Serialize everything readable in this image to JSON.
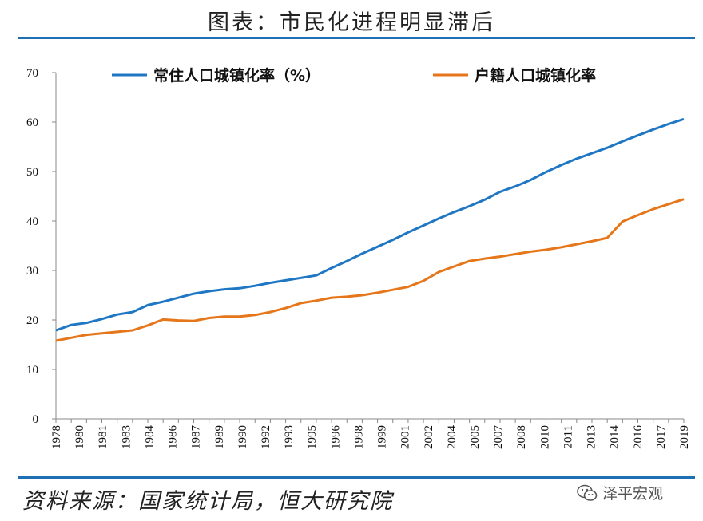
{
  "title": "图表：市民化进程明显滞后",
  "source": "资料来源：国家统计局，恒大研究院",
  "watermark": "泽平宏观",
  "watermark_icon": "wechat-icon",
  "colors": {
    "series1": "#1f77c4",
    "series2": "#e6761a",
    "rule": "#1f6fb5"
  },
  "chart_data": {
    "type": "line",
    "ylim": [
      0,
      70
    ],
    "yticks": [
      0,
      10,
      20,
      30,
      40,
      50,
      60,
      70
    ],
    "grid": false,
    "legend_placement": "top",
    "xtick_labels": [
      "1978",
      "1980",
      "1981",
      "1983",
      "1984",
      "1986",
      "1987",
      "1989",
      "1990",
      "1992",
      "1993",
      "1995",
      "1996",
      "1998",
      "1999",
      "2001",
      "2002",
      "2004",
      "2005",
      "2007",
      "2008",
      "2010",
      "2011",
      "2013",
      "2014",
      "2016",
      "2017",
      "2019"
    ],
    "x": [
      1978,
      1979,
      1980,
      1981,
      1982,
      1983,
      1984,
      1985,
      1986,
      1987,
      1988,
      1989,
      1990,
      1991,
      1992,
      1993,
      1994,
      1995,
      1996,
      1997,
      1998,
      1999,
      2000,
      2001,
      2002,
      2003,
      2004,
      2005,
      2006,
      2007,
      2008,
      2009,
      2010,
      2011,
      2012,
      2013,
      2014,
      2015,
      2016,
      2017,
      2018,
      2019
    ],
    "series": [
      {
        "name": "常住人口城镇化率（%）",
        "color": "#1f77c4",
        "values": [
          17.9,
          19.0,
          19.4,
          20.2,
          21.1,
          21.6,
          23.0,
          23.7,
          24.5,
          25.3,
          25.8,
          26.2,
          26.4,
          26.9,
          27.5,
          28.0,
          28.5,
          29.0,
          30.5,
          31.9,
          33.4,
          34.8,
          36.2,
          37.7,
          39.1,
          40.5,
          41.8,
          43.0,
          44.3,
          45.9,
          47.0,
          48.3,
          49.9,
          51.3,
          52.6,
          53.7,
          54.8,
          56.1,
          57.3,
          58.5,
          59.6,
          60.6
        ]
      },
      {
        "name": "户籍人口城镇化率",
        "color": "#e6761a",
        "values": [
          15.8,
          16.4,
          17.0,
          17.3,
          17.6,
          17.9,
          18.9,
          20.1,
          19.9,
          19.8,
          20.4,
          20.7,
          20.7,
          21.0,
          21.6,
          22.4,
          23.4,
          23.9,
          24.5,
          24.7,
          25.0,
          25.5,
          26.1,
          26.7,
          27.9,
          29.7,
          30.8,
          31.9,
          32.4,
          32.8,
          33.3,
          33.8,
          34.2,
          34.7,
          35.3,
          35.9,
          36.6,
          39.9,
          41.2,
          42.4,
          43.4,
          44.4
        ]
      }
    ]
  }
}
